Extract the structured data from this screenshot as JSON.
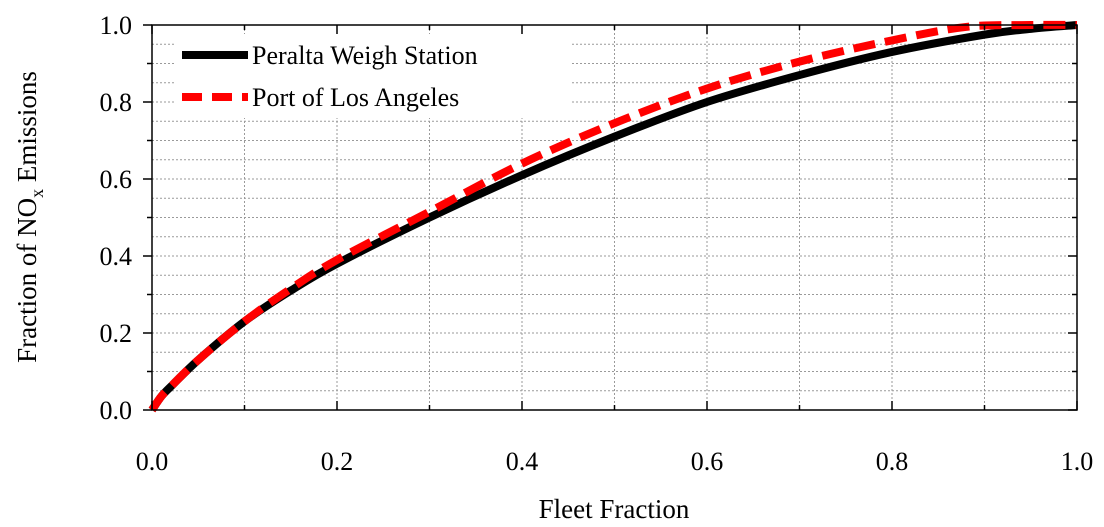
{
  "chart_data": {
    "type": "line",
    "xlabel": "Fleet Fraction",
    "ylabel": "Fraction of NO",
    "ylabel_sub": "x",
    "ylabel_suffix": " Emissions",
    "xlim": [
      0.0,
      1.0
    ],
    "ylim": [
      0.0,
      1.0
    ],
    "x_ticks": [
      "0.0",
      "0.2",
      "0.4",
      "0.6",
      "0.8",
      "1.0"
    ],
    "y_ticks": [
      "0.0",
      "0.2",
      "0.4",
      "0.6",
      "0.8",
      "1.0"
    ],
    "grid": true,
    "legend_position": "top-left",
    "series": [
      {
        "name": "Peralta Weigh Station",
        "color": "#000000",
        "style": "solid",
        "x": [
          0.0,
          0.01,
          0.02,
          0.05,
          0.1,
          0.15,
          0.2,
          0.3,
          0.4,
          0.5,
          0.6,
          0.7,
          0.8,
          0.9,
          0.95,
          1.0
        ],
        "y": [
          0.0,
          0.035,
          0.06,
          0.13,
          0.23,
          0.31,
          0.38,
          0.5,
          0.61,
          0.71,
          0.8,
          0.87,
          0.93,
          0.975,
          0.99,
          1.0
        ]
      },
      {
        "name": "Port of Los Angeles",
        "color": "#ff0000",
        "style": "dashed",
        "x": [
          0.0,
          0.01,
          0.02,
          0.05,
          0.1,
          0.15,
          0.2,
          0.3,
          0.4,
          0.5,
          0.6,
          0.7,
          0.8,
          0.88,
          0.95,
          1.0
        ],
        "y": [
          0.0,
          0.035,
          0.06,
          0.13,
          0.23,
          0.315,
          0.39,
          0.515,
          0.64,
          0.745,
          0.835,
          0.905,
          0.96,
          0.995,
          1.0,
          1.0
        ]
      }
    ]
  }
}
